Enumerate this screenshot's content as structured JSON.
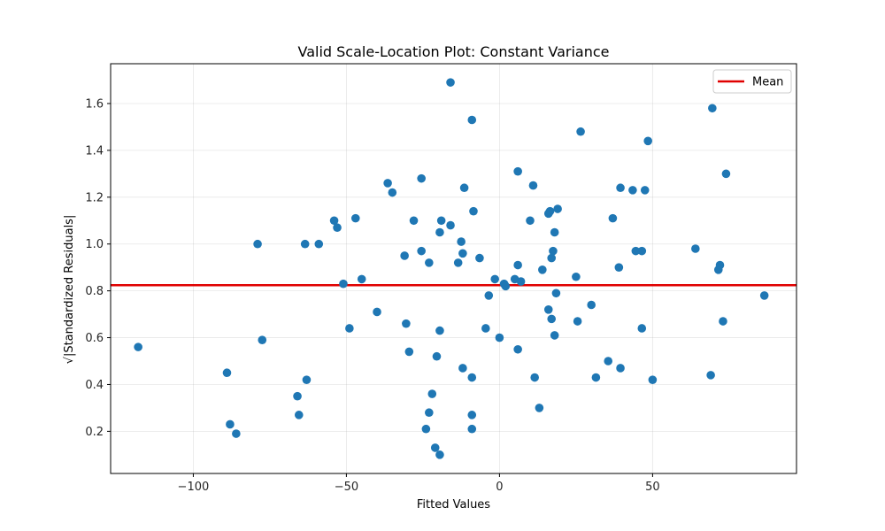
{
  "chart_data": {
    "type": "scatter",
    "title": "Valid Scale-Location Plot: Constant Variance",
    "xlabel": "Fitted Values",
    "ylabel": "√|Standardized Residuals|",
    "xlim": [
      -127,
      97
    ],
    "ylim": [
      0.02,
      1.77
    ],
    "xticks": [
      -100,
      -50,
      0,
      50
    ],
    "yticks": [
      0.2,
      0.4,
      0.6,
      0.8,
      1.0,
      1.2,
      1.4,
      1.6
    ],
    "xtick_labels": [
      "−100",
      "−50",
      "0",
      "50"
    ],
    "ytick_labels": [
      "0.2",
      "0.4",
      "0.6",
      "0.8",
      "1.0",
      "1.2",
      "1.4",
      "1.6"
    ],
    "grid": true,
    "legend_position": "top-right",
    "point_color": "#1f77b4",
    "mean_line": {
      "label": "Mean",
      "value": 0.824,
      "color": "#e00000"
    },
    "points": [
      [
        -118.0,
        0.56
      ],
      [
        -89.0,
        0.45
      ],
      [
        -88.0,
        0.23
      ],
      [
        -86.0,
        0.19
      ],
      [
        -79.0,
        1.0
      ],
      [
        -77.5,
        0.59
      ],
      [
        -66.0,
        0.35
      ],
      [
        -65.5,
        0.27
      ],
      [
        -63.5,
        1.0
      ],
      [
        -63.0,
        0.42
      ],
      [
        -59.0,
        1.0
      ],
      [
        -54.0,
        1.1
      ],
      [
        -53.0,
        1.07
      ],
      [
        -51.0,
        0.83
      ],
      [
        -49.0,
        0.64
      ],
      [
        -47.0,
        1.11
      ],
      [
        -45.0,
        0.85
      ],
      [
        -40.0,
        0.71
      ],
      [
        -36.5,
        1.26
      ],
      [
        -35.0,
        1.22
      ],
      [
        -31.0,
        0.95
      ],
      [
        -30.5,
        0.66
      ],
      [
        -29.5,
        0.54
      ],
      [
        -28.0,
        1.1
      ],
      [
        -25.5,
        1.28
      ],
      [
        -25.5,
        0.97
      ],
      [
        -24.0,
        0.21
      ],
      [
        -23.0,
        0.92
      ],
      [
        -23.0,
        0.28
      ],
      [
        -22.0,
        0.36
      ],
      [
        -21.0,
        0.13
      ],
      [
        -20.5,
        0.52
      ],
      [
        -19.5,
        0.1
      ],
      [
        -19.5,
        0.63
      ],
      [
        -19.5,
        1.05
      ],
      [
        -19.0,
        1.1
      ],
      [
        -16.0,
        1.08
      ],
      [
        -16.0,
        1.69
      ],
      [
        -13.5,
        0.92
      ],
      [
        -12.5,
        1.01
      ],
      [
        -12.0,
        0.96
      ],
      [
        -12.0,
        0.47
      ],
      [
        -11.5,
        1.24
      ],
      [
        -9.0,
        1.53
      ],
      [
        -9.0,
        0.43
      ],
      [
        -9.0,
        0.27
      ],
      [
        -9.0,
        0.21
      ],
      [
        -8.5,
        1.14
      ],
      [
        -6.5,
        0.94
      ],
      [
        -4.5,
        0.64
      ],
      [
        -3.5,
        0.78
      ],
      [
        -1.5,
        0.85
      ],
      [
        0.0,
        0.6
      ],
      [
        1.5,
        0.83
      ],
      [
        2.0,
        0.82
      ],
      [
        5.0,
        0.85
      ],
      [
        6.0,
        0.91
      ],
      [
        6.0,
        1.31
      ],
      [
        6.0,
        0.55
      ],
      [
        7.0,
        0.84
      ],
      [
        10.0,
        1.1
      ],
      [
        11.0,
        1.25
      ],
      [
        11.5,
        0.43
      ],
      [
        13.0,
        0.3
      ],
      [
        14.0,
        0.89
      ],
      [
        16.0,
        1.13
      ],
      [
        16.0,
        0.72
      ],
      [
        16.5,
        1.14
      ],
      [
        17.0,
        0.68
      ],
      [
        17.0,
        0.94
      ],
      [
        17.5,
        0.97
      ],
      [
        18.0,
        0.61
      ],
      [
        18.0,
        1.05
      ],
      [
        18.5,
        0.79
      ],
      [
        19.0,
        1.15
      ],
      [
        25.0,
        0.86
      ],
      [
        25.5,
        0.67
      ],
      [
        26.5,
        1.48
      ],
      [
        30.0,
        0.74
      ],
      [
        31.5,
        0.43
      ],
      [
        35.5,
        0.5
      ],
      [
        37.0,
        1.11
      ],
      [
        39.0,
        0.9
      ],
      [
        39.5,
        0.47
      ],
      [
        39.5,
        1.24
      ],
      [
        43.5,
        1.23
      ],
      [
        44.5,
        0.97
      ],
      [
        46.5,
        0.97
      ],
      [
        46.5,
        0.64
      ],
      [
        47.5,
        1.23
      ],
      [
        48.5,
        1.44
      ],
      [
        50.0,
        0.42
      ],
      [
        64.0,
        0.98
      ],
      [
        69.0,
        0.44
      ],
      [
        69.5,
        1.58
      ],
      [
        71.5,
        0.89
      ],
      [
        72.0,
        0.91
      ],
      [
        73.0,
        0.67
      ],
      [
        74.0,
        1.3
      ],
      [
        86.5,
        0.78
      ]
    ]
  }
}
